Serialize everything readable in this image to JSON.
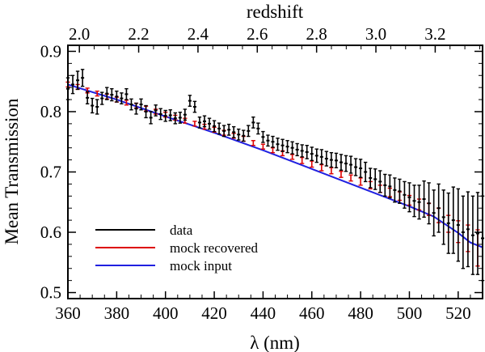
{
  "chart_data": {
    "type": "line",
    "title": "",
    "xlabel": "λ (nm)",
    "ylabel": "Mean Transmission",
    "top_axis_label": "redshift",
    "xlim": [
      360,
      530
    ],
    "ylim": [
      0.49,
      0.91
    ],
    "x_ticks": [
      360,
      380,
      400,
      420,
      440,
      460,
      480,
      500,
      520
    ],
    "y_ticks": [
      0.5,
      0.6,
      0.7,
      0.8,
      0.9
    ],
    "y_tick_labels": [
      "0.5",
      "0.6",
      "0.7",
      "0.8",
      "0.9"
    ],
    "top_ticks": [
      2.0,
      2.2,
      2.4,
      2.6,
      2.8,
      3.0,
      3.2
    ],
    "top_tick_labels": [
      "2.0",
      "2.2",
      "2.4",
      "2.6",
      "2.8",
      "3.0",
      "3.2"
    ],
    "lyman_alpha_rest_nm": 121.567,
    "legend_position": "bottom-left",
    "series": [
      {
        "name": "data",
        "color": "#000000",
        "style": "errorbar",
        "x": [
          360,
          362,
          364,
          366,
          368,
          370,
          372,
          374,
          376,
          378,
          380,
          382,
          384,
          386,
          388,
          390,
          392,
          394,
          396,
          398,
          400,
          402,
          404,
          406,
          408,
          410,
          412,
          414,
          416,
          418,
          420,
          422,
          424,
          426,
          428,
          430,
          432,
          434,
          436,
          438,
          440,
          442,
          444,
          446,
          448,
          450,
          452,
          454,
          456,
          458,
          460,
          462,
          464,
          466,
          468,
          470,
          472,
          474,
          476,
          478,
          480,
          482,
          484,
          486,
          488,
          490,
          492,
          494,
          496,
          498,
          500,
          502,
          504,
          506,
          508,
          510,
          512,
          514,
          516,
          518,
          520,
          522,
          524,
          526,
          528,
          530
        ],
        "y": [
          0.838,
          0.845,
          0.852,
          0.856,
          0.823,
          0.81,
          0.808,
          0.822,
          0.83,
          0.828,
          0.825,
          0.822,
          0.829,
          0.812,
          0.805,
          0.812,
          0.8,
          0.79,
          0.802,
          0.796,
          0.793,
          0.794,
          0.789,
          0.79,
          0.795,
          0.818,
          0.808,
          0.782,
          0.784,
          0.78,
          0.776,
          0.772,
          0.768,
          0.77,
          0.766,
          0.762,
          0.76,
          0.768,
          0.782,
          0.772,
          0.758,
          0.752,
          0.75,
          0.746,
          0.744,
          0.742,
          0.74,
          0.737,
          0.735,
          0.733,
          0.73,
          0.727,
          0.725,
          0.722,
          0.72,
          0.719,
          0.716,
          0.714,
          0.712,
          0.708,
          0.706,
          0.7,
          0.69,
          0.688,
          0.684,
          0.678,
          0.676,
          0.67,
          0.668,
          0.662,
          0.658,
          0.652,
          0.65,
          0.655,
          0.648,
          0.632,
          0.64,
          0.625,
          0.615,
          0.62,
          0.612,
          0.6,
          0.605,
          0.595,
          0.598,
          0.59
        ],
        "err": [
          0.018,
          0.015,
          0.015,
          0.014,
          0.01,
          0.012,
          0.012,
          0.01,
          0.01,
          0.01,
          0.009,
          0.009,
          0.009,
          0.009,
          0.009,
          0.009,
          0.01,
          0.01,
          0.009,
          0.009,
          0.009,
          0.009,
          0.009,
          0.009,
          0.009,
          0.009,
          0.009,
          0.009,
          0.009,
          0.009,
          0.009,
          0.009,
          0.009,
          0.009,
          0.009,
          0.009,
          0.009,
          0.009,
          0.009,
          0.009,
          0.009,
          0.009,
          0.009,
          0.01,
          0.01,
          0.01,
          0.01,
          0.01,
          0.01,
          0.011,
          0.011,
          0.011,
          0.012,
          0.012,
          0.012,
          0.012,
          0.013,
          0.013,
          0.014,
          0.014,
          0.015,
          0.016,
          0.016,
          0.017,
          0.018,
          0.018,
          0.019,
          0.02,
          0.02,
          0.022,
          0.024,
          0.026,
          0.028,
          0.03,
          0.034,
          0.038,
          0.04,
          0.045,
          0.05,
          0.055,
          0.06,
          0.06,
          0.062,
          0.065,
          0.068,
          0.07
        ]
      },
      {
        "name": "mock recovered",
        "color": "#dd0000",
        "style": "errorbar",
        "x": [
          360,
          364,
          368,
          372,
          376,
          380,
          384,
          388,
          392,
          396,
          400,
          404,
          408,
          412,
          416,
          420,
          424,
          428,
          432,
          436,
          440,
          444,
          448,
          452,
          456,
          460,
          464,
          468,
          472,
          476,
          480,
          484,
          488,
          492,
          496,
          500,
          504,
          508,
          512,
          516,
          520,
          524,
          528
        ],
        "y": [
          0.845,
          0.841,
          0.835,
          0.83,
          0.825,
          0.82,
          0.815,
          0.81,
          0.805,
          0.8,
          0.795,
          0.79,
          0.785,
          0.78,
          0.775,
          0.77,
          0.765,
          0.76,
          0.755,
          0.748,
          0.742,
          0.736,
          0.731,
          0.725,
          0.719,
          0.713,
          0.707,
          0.702,
          0.696,
          0.69,
          0.684,
          0.678,
          0.672,
          0.666,
          0.66,
          0.653,
          0.646,
          0.638,
          0.628,
          0.614,
          0.601,
          0.59,
          0.574
        ],
        "err": [
          0.004,
          0.004,
          0.004,
          0.004,
          0.004,
          0.004,
          0.004,
          0.004,
          0.004,
          0.004,
          0.004,
          0.004,
          0.004,
          0.004,
          0.004,
          0.004,
          0.004,
          0.004,
          0.004,
          0.004,
          0.004,
          0.004,
          0.004,
          0.004,
          0.005,
          0.005,
          0.005,
          0.005,
          0.005,
          0.005,
          0.006,
          0.006,
          0.006,
          0.007,
          0.007,
          0.008,
          0.009,
          0.01,
          0.012,
          0.014,
          0.018,
          0.022,
          0.03
        ]
      },
      {
        "name": "mock input",
        "color": "#2020e0",
        "style": "line",
        "x": [
          360,
          380,
          400,
          420,
          440,
          460,
          480,
          500,
          510,
          520,
          525,
          530
        ],
        "y": [
          0.845,
          0.82,
          0.792,
          0.765,
          0.736,
          0.705,
          0.674,
          0.643,
          0.626,
          0.599,
          0.583,
          0.575
        ]
      }
    ]
  }
}
